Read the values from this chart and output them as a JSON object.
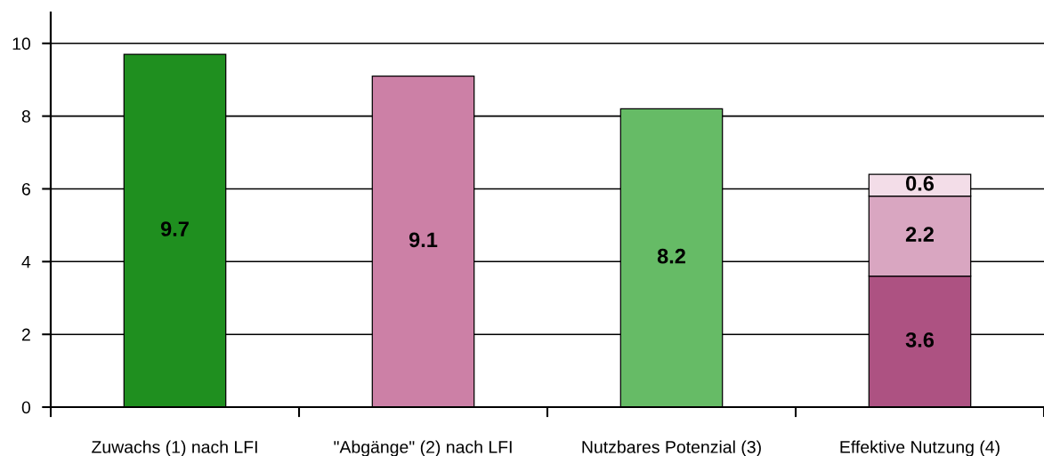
{
  "chart_data": {
    "type": "bar",
    "stacked": true,
    "data_labels": true,
    "grid": "y",
    "categories": [
      "Zuwachs (1) nach LFI",
      "\"Abgänge\" (2) nach LFI",
      "Nutzbares Potenzial (3)",
      "Effektive Nutzung (4)"
    ],
    "series": [
      {
        "colors": [
          "#1f8f1f",
          "#cc80a6",
          "#66bb66",
          "#ad5282"
        ],
        "values": [
          9.7,
          9.1,
          8.2,
          3.6
        ]
      },
      {
        "color": "#d9a6c1",
        "values": [
          null,
          null,
          null,
          2.2
        ]
      },
      {
        "color": "#f3dde8",
        "values": [
          null,
          null,
          null,
          0.6
        ]
      }
    ],
    "ylim": [
      0,
      10.85
    ],
    "yticks": [
      0,
      2,
      4,
      6,
      8,
      10
    ]
  }
}
